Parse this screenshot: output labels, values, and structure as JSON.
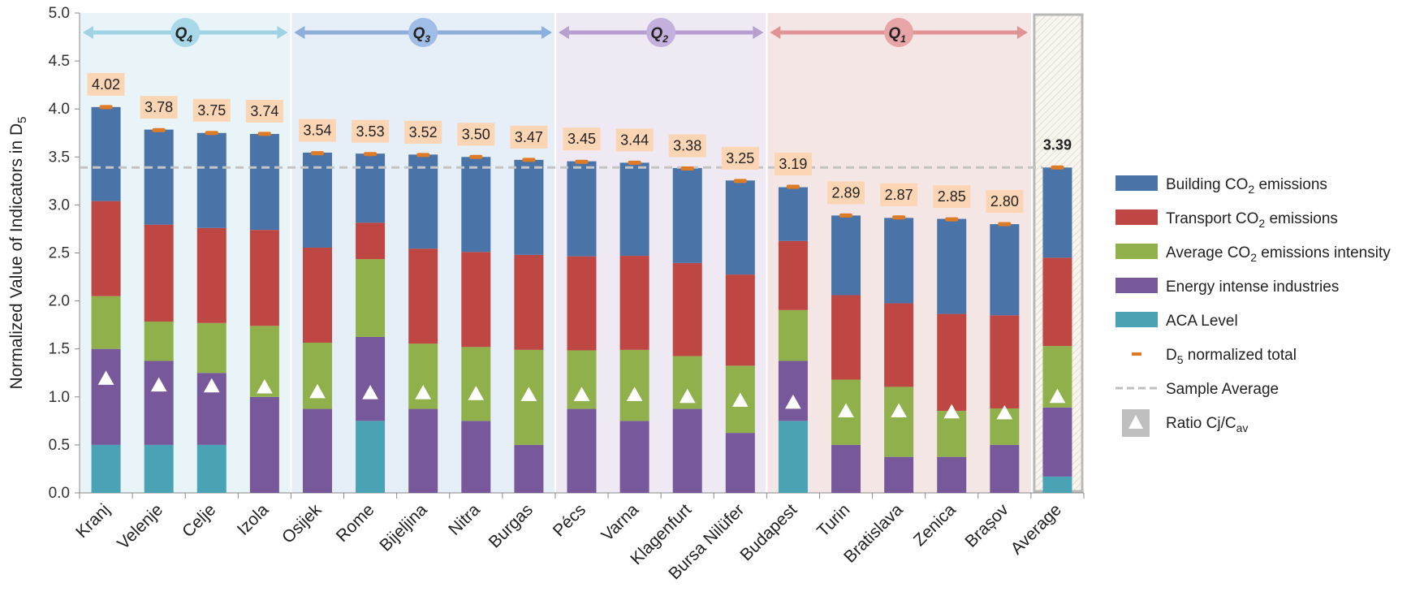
{
  "chart_data": {
    "type": "bar",
    "stacked": true,
    "ylabel": "Normalized Value of Indicators in D",
    "ylabel_subscript": "5",
    "ylim": [
      0,
      5
    ],
    "yticks": [
      "0.0",
      "0.5",
      "1.0",
      "1.5",
      "2.0",
      "2.5",
      "3.0",
      "3.5",
      "4.0",
      "4.5",
      "5.0"
    ],
    "categories": [
      "Kranj",
      "Velenje",
      "Celje",
      "Izola",
      "Osijek",
      "Rome",
      "Bijeljina",
      "Nitra",
      "Burgas",
      "Pécs",
      "Varna",
      "Klagenfurt",
      "Bursa Nilüfer",
      "Budapest",
      "Turin",
      "Bratislava",
      "Zenica",
      "Brașov",
      "Average"
    ],
    "series": [
      {
        "name": "ACA Level",
        "color": "#4aa3b5",
        "values": [
          0.5,
          0.5,
          0.5,
          0,
          0,
          0.75,
          0,
          0,
          0,
          0,
          0,
          0,
          0,
          0.75,
          0,
          0,
          0,
          0,
          0.17
        ]
      },
      {
        "name": "Energy intense industries",
        "color": "#77599b",
        "values": [
          1.0,
          0.875,
          0.75,
          1.0,
          0.875,
          0.875,
          0.875,
          0.75,
          0.5,
          0.875,
          0.75,
          0.875,
          0.625,
          0.625,
          0.5,
          0.375,
          0.375,
          0.5,
          0.72
        ]
      },
      {
        "name": "Average CO₂ emissions intensity",
        "color": "#8fb04a",
        "values": [
          0.55,
          0.41,
          0.52,
          0.74,
          0.69,
          0.81,
          0.68,
          0.77,
          0.99,
          0.61,
          0.74,
          0.55,
          0.7,
          0.53,
          0.68,
          0.73,
          0.48,
          0.38,
          0.64
        ]
      },
      {
        "name": "Transport CO₂ emissions",
        "color": "#bf4743",
        "values": [
          0.99,
          1.01,
          0.99,
          1.0,
          0.99,
          0.38,
          0.99,
          0.99,
          0.99,
          0.98,
          0.98,
          0.97,
          0.95,
          0.72,
          0.88,
          0.87,
          1.01,
          0.97,
          0.92
        ]
      },
      {
        "name": "Building CO₂ emissions",
        "color": "#4a74a8",
        "values": [
          0.98,
          0.99,
          0.99,
          1.0,
          0.99,
          0.72,
          0.98,
          0.99,
          0.99,
          0.99,
          0.97,
          0.99,
          0.98,
          0.56,
          0.83,
          0.89,
          0.99,
          0.95,
          0.94
        ]
      }
    ],
    "totals": [
      "4.02",
      "3.78",
      "3.75",
      "3.74",
      "3.54",
      "3.53",
      "3.52",
      "3.50",
      "3.47",
      "3.45",
      "3.44",
      "3.38",
      "3.25",
      "3.19",
      "2.89",
      "2.87",
      "2.85",
      "2.80",
      "3.39"
    ],
    "total_values": [
      4.02,
      3.78,
      3.75,
      3.74,
      3.54,
      3.53,
      3.52,
      3.5,
      3.47,
      3.45,
      3.44,
      3.38,
      3.25,
      3.19,
      2.89,
      2.87,
      2.85,
      2.8,
      3.39
    ],
    "ratio": [
      1.19,
      1.12,
      1.11,
      1.1,
      1.05,
      1.04,
      1.04,
      1.03,
      1.02,
      1.02,
      1.02,
      1.0,
      0.96,
      0.94,
      0.85,
      0.85,
      0.84,
      0.83,
      1.0
    ],
    "sample_average": 3.39,
    "quartiles": [
      {
        "label": "Q",
        "sub": "4",
        "start": 0,
        "end": 3,
        "bg": "#e8f4f8",
        "arrow": "#9fd3e4",
        "circle": "#a9d8e8"
      },
      {
        "label": "Q",
        "sub": "3",
        "start": 4,
        "end": 8,
        "bg": "#e6eef8",
        "arrow": "#8eaedb",
        "circle": "#9fbde6"
      },
      {
        "label": "Q",
        "sub": "2",
        "start": 9,
        "end": 12,
        "bg": "#eee9f3",
        "arrow": "#b79fd0",
        "circle": "#c4b0dc"
      },
      {
        "label": "Q",
        "sub": "1",
        "start": 13,
        "end": 17,
        "bg": "#f5e6e6",
        "arrow": "#df9496",
        "circle": "#e7a5a7"
      }
    ],
    "legend": [
      {
        "label": "Building CO",
        "sub": "2",
        "rest": " emissions",
        "kind": "box",
        "color": "#4a74a8"
      },
      {
        "label": "Transport CO",
        "sub": "2",
        "rest": " emissions",
        "kind": "box",
        "color": "#bf4743"
      },
      {
        "label": "Average CO",
        "sub": "2",
        "rest": " emissions intensity",
        "kind": "box",
        "color": "#8fb04a"
      },
      {
        "label": "Energy intense industries",
        "sub": "",
        "rest": "",
        "kind": "box",
        "color": "#77599b"
      },
      {
        "label": "ACA Level",
        "sub": "",
        "rest": "",
        "kind": "box",
        "color": "#4aa3b5"
      },
      {
        "label": "D",
        "sub": "5",
        "rest": " normalized total",
        "kind": "dash",
        "color": "#e07b25"
      },
      {
        "label": "Sample Average",
        "sub": "",
        "rest": "",
        "kind": "dashed",
        "color": "#bfbfbf"
      },
      {
        "label": "Ratio Cj/C",
        "sub": "av",
        "rest": "",
        "kind": "triangle",
        "color": "#bfbfbf"
      }
    ],
    "legend_position": "right",
    "grid": false
  }
}
